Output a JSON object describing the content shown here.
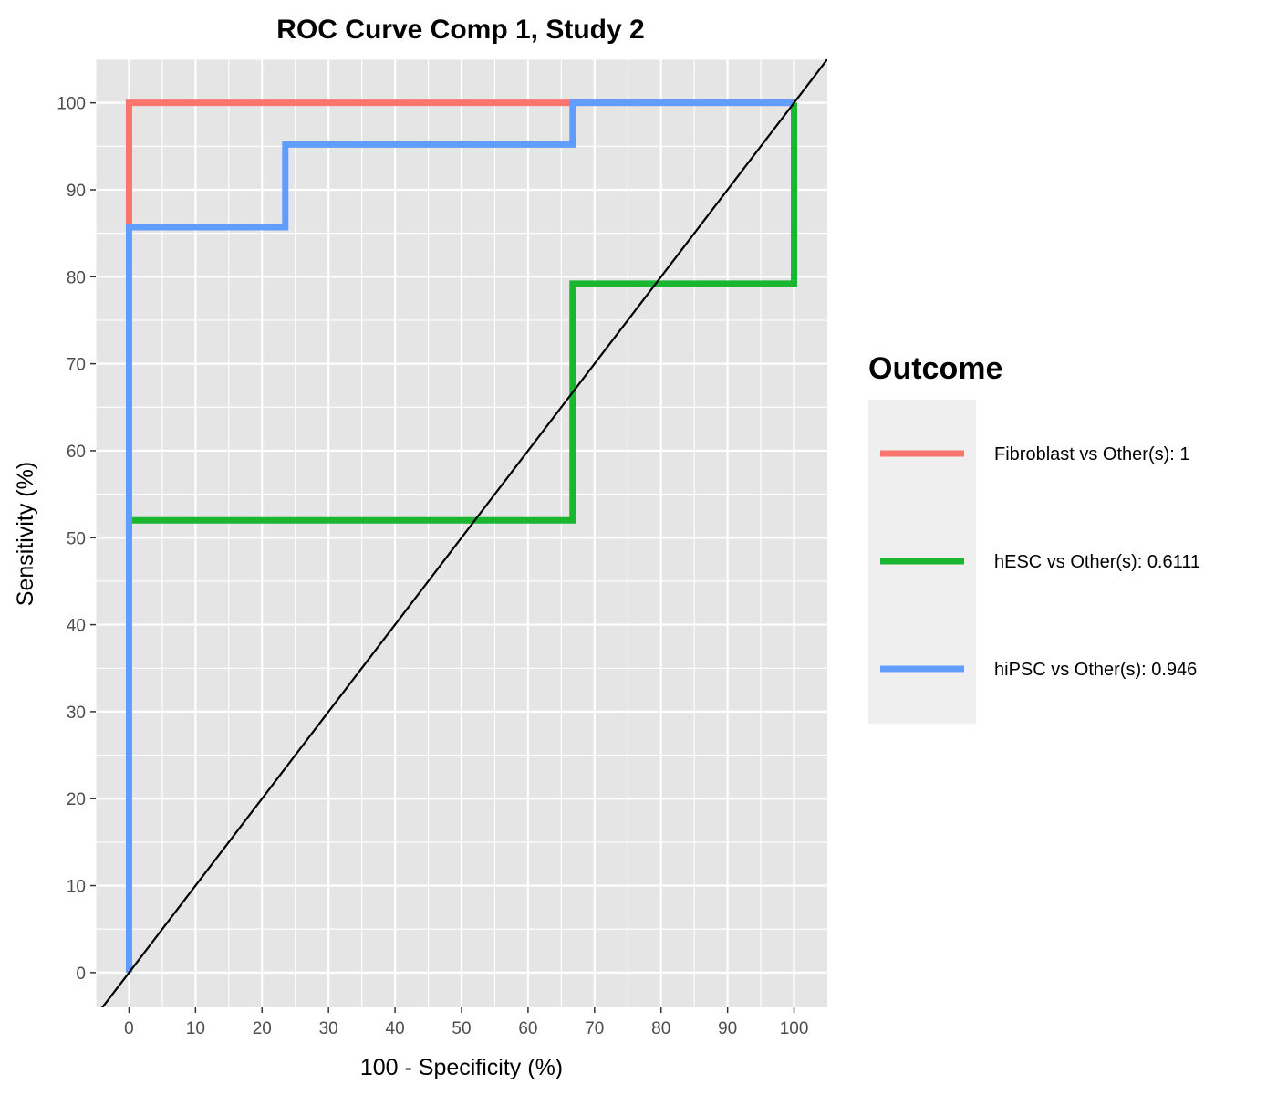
{
  "chart_data": {
    "type": "line",
    "title": "ROC Curve Comp 1, Study 2",
    "xlabel": "100 - Specificity (%)",
    "ylabel": "Sensitivity (%)",
    "xlim": [
      -5,
      105
    ],
    "ylim": [
      -4,
      105
    ],
    "x_ticks": [
      0,
      10,
      20,
      30,
      40,
      50,
      60,
      70,
      80,
      90,
      100
    ],
    "y_ticks": [
      0,
      10,
      20,
      30,
      40,
      50,
      60,
      70,
      80,
      90,
      100
    ],
    "x_tick_labels": [
      "0",
      "10",
      "20",
      "30",
      "40",
      "50",
      "60",
      "70",
      "80",
      "90",
      "100"
    ],
    "y_tick_labels": [
      "0",
      "10",
      "20",
      "30",
      "40",
      "50",
      "60",
      "70",
      "80",
      "90",
      "100"
    ],
    "grid": true,
    "legend": {
      "title": "Outcome",
      "position": "right",
      "entries": [
        "Fibroblast vs Other(s): 1",
        "hESC vs Other(s): 0.6111",
        "hiPSC vs Other(s): 0.946"
      ]
    },
    "series": [
      {
        "name": "Fibroblast vs Other(s): 1",
        "color": "#F8766D",
        "x": [
          0,
          0,
          66.7,
          100
        ],
        "y": [
          85.7,
          100,
          100,
          100
        ]
      },
      {
        "name": "hESC vs Other(s): 0.6111",
        "color": "#1BB631",
        "x": [
          0,
          0,
          66.7,
          66.7,
          100,
          100
        ],
        "y": [
          50,
          52,
          52,
          79.2,
          79.2,
          100
        ]
      },
      {
        "name": "hiPSC vs Other(s): 0.946",
        "color": "#619CFF",
        "x": [
          0,
          0,
          23.5,
          23.5,
          66.7,
          66.7,
          100
        ],
        "y": [
          0,
          85.7,
          85.7,
          95.2,
          95.2,
          100,
          100
        ]
      }
    ],
    "reference_line": {
      "name": "diagonal",
      "color": "#000000",
      "slope": 1,
      "intercept": 0
    }
  },
  "colors": {
    "panel_background": "#E5E5E5",
    "grid_major": "#FFFFFF",
    "legend_background": "#EFEFEF"
  }
}
